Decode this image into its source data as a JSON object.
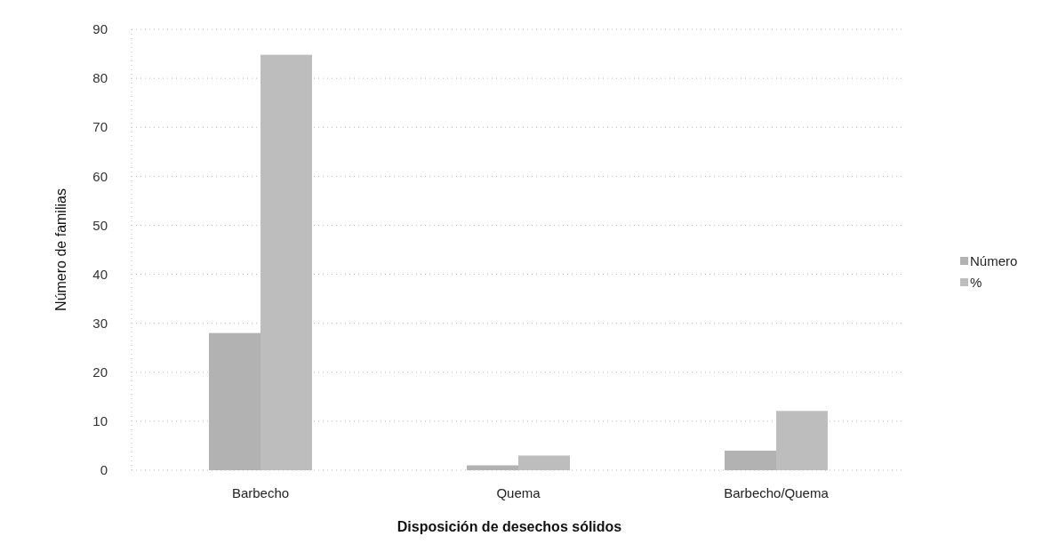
{
  "chart_data": {
    "type": "bar",
    "xlabel": "Disposición de desechos sólidos",
    "ylabel": "Número de familias",
    "categories": [
      "Barbecho",
      "Quema",
      "Barbecho/Quema"
    ],
    "series": [
      {
        "name": "Número",
        "color": "#b2b2b2",
        "values": [
          28,
          1,
          4
        ]
      },
      {
        "name": "%",
        "color": "#bdbdbd",
        "values": [
          84.8,
          3.0,
          12.1
        ]
      }
    ],
    "ylim": [
      0,
      90
    ],
    "yticks": [
      0,
      10,
      20,
      30,
      40,
      50,
      60,
      70,
      80,
      90
    ],
    "grid": "y",
    "legend": "right"
  }
}
